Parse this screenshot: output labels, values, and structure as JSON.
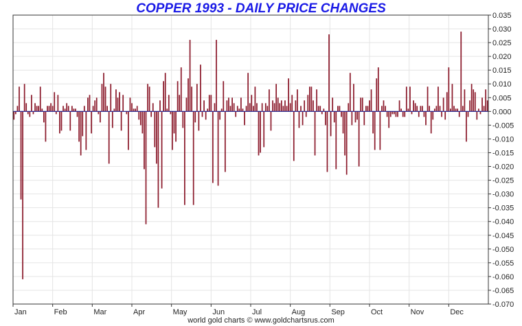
{
  "chart_data": {
    "type": "bar",
    "title": "COPPER 1993 - DAILY PRICE CHANGES",
    "xlabel": "",
    "ylabel": "",
    "ylim": [
      -0.07,
      0.035
    ],
    "y_ticks": [
      "0.035",
      "0.030",
      "0.025",
      "0.020",
      "0.015",
      "0.010",
      "0.005",
      "0.000",
      "-0.005",
      "-0.010",
      "-0.015",
      "-0.020",
      "-0.025",
      "-0.030",
      "-0.035",
      "-0.040",
      "-0.045",
      "-0.050",
      "-0.055",
      "-0.060",
      "-0.065",
      "-0.070"
    ],
    "months": [
      "Jan",
      "Feb",
      "Mar",
      "Apr",
      "May",
      "Jun",
      "Jul",
      "Aug",
      "Sep",
      "Oct",
      "Nov",
      "Dec"
    ],
    "grid": true,
    "bar_color": "#8b1a2b",
    "zero_line_color": "#1a1a8c",
    "values": [
      -0.003,
      -0.001,
      0.002,
      0.009,
      -0.032,
      -0.061,
      0.01,
      0.003,
      -0.001,
      -0.002,
      0.006,
      -0.001,
      0.003,
      0.002,
      0.002,
      0.009,
      0.001,
      -0.004,
      -0.011,
      0.002,
      0.002,
      0.003,
      0.002,
      0.007,
      -0.001,
      0.006,
      -0.008,
      -0.007,
      0.002,
      0.001,
      0.003,
      0.002,
      -0.007,
      0.002,
      0.001,
      0.001,
      -0.002,
      -0.011,
      -0.016,
      -0.009,
      0.002,
      -0.014,
      0.005,
      0.006,
      -0.008,
      0.002,
      0.004,
      0.005,
      -0.001,
      -0.004,
      0.01,
      0.014,
      0.009,
      0.002,
      -0.019,
      0.01,
      -0.006,
      0.001,
      0.008,
      0.005,
      0.007,
      -0.007,
      0.006,
      0.0,
      -0.001,
      -0.014,
      0.005,
      0.003,
      0.001,
      0.001,
      0.002,
      -0.003,
      -0.005,
      -0.008,
      -0.021,
      -0.041,
      0.01,
      0.009,
      -0.002,
      0.003,
      -0.013,
      -0.019,
      -0.035,
      0.004,
      -0.028,
      0.011,
      0.014,
      0.001,
      0.006,
      -0.001,
      -0.014,
      -0.008,
      -0.011,
      0.011,
      0.006,
      0.016,
      -0.006,
      -0.034,
      0.005,
      0.012,
      0.026,
      0.009,
      -0.034,
      -0.004,
      0.01,
      -0.007,
      0.017,
      -0.002,
      0.004,
      -0.003,
      0.001,
      0.006,
      0.006,
      -0.026,
      0.003,
      0.026,
      -0.027,
      -0.003,
      0.001,
      0.011,
      -0.022,
      0.004,
      0.005,
      0.002,
      0.005,
      0.003,
      -0.002,
      0.002,
      0.001,
      0.005,
      0.001,
      -0.005,
      0.002,
      0.014,
      0.003,
      0.006,
      0.002,
      0.009,
      0.003,
      -0.016,
      -0.015,
      0.003,
      -0.013,
      0.003,
      0.002,
      0.008,
      -0.007,
      0.004,
      0.003,
      0.01,
      0.005,
      0.003,
      0.004,
      0.002,
      0.004,
      0.002,
      0.012,
      0.003,
      0.006,
      -0.018,
      0.004,
      0.008,
      -0.006,
      0.002,
      -0.005,
      0.004,
      -0.002,
      0.006,
      0.009,
      0.009,
      0.004,
      -0.016,
      0.008,
      0.002,
      0.002,
      -0.001,
      0.001,
      -0.005,
      -0.022,
      0.028,
      -0.009,
      0.005,
      -0.004,
      -0.021,
      0.002,
      0.002,
      -0.002,
      -0.008,
      -0.016,
      -0.023,
      0.003,
      0.014,
      -0.005,
      0.01,
      -0.004,
      -0.003,
      -0.02,
      0.005,
      0.005,
      -0.005,
      0.002,
      0.002,
      0.004,
      0.008,
      -0.008,
      -0.014,
      0.012,
      0.016,
      -0.014,
      0.002,
      0.004,
      0.002,
      -0.002,
      -0.006,
      -0.002,
      -0.001,
      -0.001,
      -0.002,
      -0.002,
      0.004,
      0.001,
      -0.002,
      -0.002,
      0.009,
      0.001,
      0.009,
      -0.001,
      0.004,
      0.003,
      0.002,
      -0.002,
      0.002,
      0.002,
      -0.002,
      -0.005,
      0.009,
      0.002,
      -0.008,
      -0.003,
      0.001,
      0.002,
      0.009,
      0.002,
      -0.002,
      0.005,
      -0.003,
      0.007,
      0.016,
      0.001,
      0.01,
      0.002,
      0.001,
      0.001,
      -0.002,
      0.029,
      0.002,
      0.008,
      -0.011,
      -0.002,
      0.004,
      0.01,
      0.008,
      0.007,
      -0.003,
      0.001,
      -0.001,
      0.005,
      0.002,
      0.008,
      0.004
    ]
  },
  "footer": {
    "credit": "world gold charts © www.goldchartsrus.com"
  }
}
